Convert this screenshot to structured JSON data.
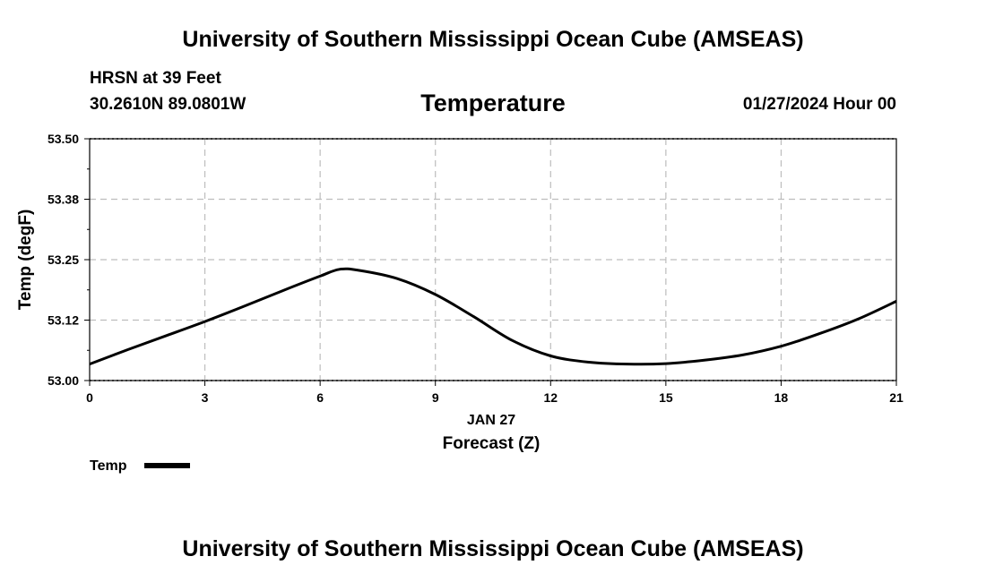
{
  "header": {
    "title": "University of Southern Mississippi Ocean Cube (AMSEAS)",
    "station": "HRSN at 39 Feet",
    "coords": "30.2610N  89.0801W",
    "datetime": "01/27/2024 Hour 00"
  },
  "footer": {
    "title": "University of Southern Mississippi Ocean Cube (AMSEAS)"
  },
  "chart_data": {
    "type": "line",
    "title": "Temperature",
    "xlabel": "Forecast (Z)",
    "date_label": "JAN 27",
    "ylabel": "Temp (degF)",
    "xlim": [
      0,
      21
    ],
    "ylim": [
      53.0,
      53.5
    ],
    "x_ticks": [
      0,
      3,
      6,
      9,
      12,
      15,
      18,
      21
    ],
    "y_ticks": [
      53.0,
      53.125,
      53.25,
      53.375,
      53.5
    ],
    "y_tick_labels": [
      "53.00",
      "53.12",
      "53.25",
      "53.38",
      "53.50"
    ],
    "grid": true,
    "legend_position": "bottom-left",
    "series": [
      {
        "name": "Temp",
        "color": "#000000",
        "x": [
          0,
          1,
          2,
          3,
          4,
          5,
          6,
          6.5,
          7,
          8,
          9,
          10,
          11,
          12,
          13,
          14,
          15,
          16,
          17,
          18,
          19,
          20,
          21
        ],
        "values": [
          53.034,
          53.064,
          53.093,
          53.122,
          53.153,
          53.185,
          53.216,
          53.23,
          53.228,
          53.211,
          53.178,
          53.132,
          53.083,
          53.051,
          53.038,
          53.034,
          53.035,
          53.042,
          53.053,
          53.071,
          53.097,
          53.127,
          53.164
        ]
      }
    ]
  }
}
